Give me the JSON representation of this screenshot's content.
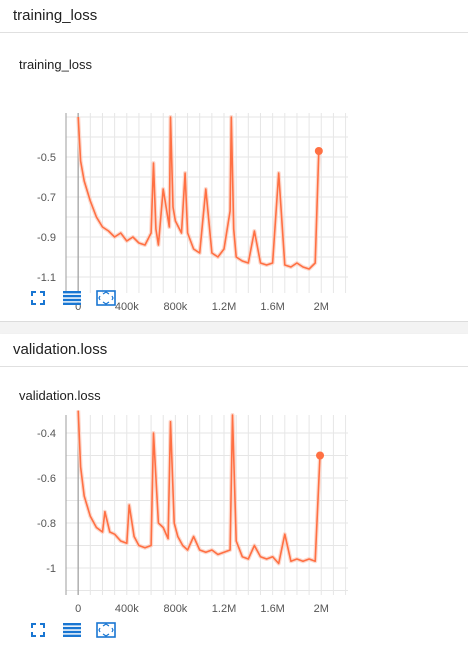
{
  "sections": [
    {
      "header": "training_loss",
      "card_title": "training_loss",
      "toolbar": [
        "expand-icon",
        "data-table-icon",
        "fit-domain-icon"
      ]
    },
    {
      "header": "validation.loss",
      "card_title": "validation.loss",
      "toolbar": [
        "expand-icon",
        "data-table-icon",
        "fit-domain-icon"
      ]
    }
  ],
  "colors": {
    "series": "#ff7043",
    "series_light": "#fbd0c2",
    "grid": "#e6e6e6",
    "axis": "#9e9e9e"
  },
  "chart_data": [
    {
      "type": "line",
      "title": "training_loss",
      "x_tick_labels": [
        "0",
        "400k",
        "800k",
        "1.2M",
        "1.6M",
        "2M"
      ],
      "x_ticks": [
        0,
        400000,
        800000,
        1200000,
        1600000,
        2000000
      ],
      "y_tick_labels": [
        "-0.5",
        "-0.7",
        "-0.9",
        "-1.1"
      ],
      "y_ticks": [
        -0.5,
        -0.7,
        -0.9,
        -1.1
      ],
      "xlim": [
        -100000,
        2220000
      ],
      "ylim": [
        -1.18,
        -0.28
      ],
      "grid": true,
      "series": [
        {
          "x": [
            0,
            20000,
            50000,
            100000,
            150000,
            200000,
            250000,
            300000,
            350000,
            400000,
            450000,
            500000,
            550000,
            600000,
            620000,
            640000,
            660000,
            700000,
            750000,
            760000,
            780000,
            800000,
            850000,
            880000,
            900000,
            950000,
            1000000,
            1050000,
            1100000,
            1150000,
            1200000,
            1250000,
            1260000,
            1280000,
            1300000,
            1350000,
            1400000,
            1450000,
            1500000,
            1550000,
            1600000,
            1650000,
            1700000,
            1750000,
            1800000,
            1850000,
            1900000,
            1950000,
            1980000
          ],
          "y": [
            -0.3,
            -0.52,
            -0.62,
            -0.72,
            -0.8,
            -0.85,
            -0.87,
            -0.9,
            -0.88,
            -0.92,
            -0.9,
            -0.93,
            -0.94,
            -0.88,
            -0.53,
            -0.86,
            -0.94,
            -0.66,
            -0.85,
            -0.3,
            -0.75,
            -0.82,
            -0.88,
            -0.58,
            -0.88,
            -0.96,
            -0.98,
            -0.66,
            -0.98,
            -1.0,
            -0.96,
            -0.77,
            -0.3,
            -0.86,
            -1.0,
            -1.02,
            -1.03,
            -0.87,
            -1.03,
            -1.04,
            -1.03,
            -0.58,
            -1.04,
            -1.05,
            -1.03,
            -1.05,
            -1.06,
            -1.03,
            -0.47
          ]
        }
      ]
    },
    {
      "type": "line",
      "title": "validation.loss",
      "x_tick_labels": [
        "0",
        "400k",
        "800k",
        "1.2M",
        "1.6M",
        "2M"
      ],
      "x_ticks": [
        0,
        400000,
        800000,
        1200000,
        1600000,
        2000000
      ],
      "y_tick_labels": [
        "-0.4",
        "-0.6",
        "-0.8",
        "-1"
      ],
      "y_ticks": [
        -0.4,
        -0.6,
        -0.8,
        -1.0
      ],
      "xlim": [
        -100000,
        2220000
      ],
      "ylim": [
        -1.12,
        -0.32
      ],
      "grid": true,
      "series": [
        {
          "x": [
            0,
            20000,
            50000,
            100000,
            150000,
            200000,
            220000,
            260000,
            300000,
            350000,
            400000,
            420000,
            460000,
            500000,
            550000,
            600000,
            620000,
            660000,
            700000,
            740000,
            760000,
            790000,
            820000,
            860000,
            900000,
            950000,
            1000000,
            1050000,
            1100000,
            1150000,
            1200000,
            1250000,
            1270000,
            1300000,
            1350000,
            1400000,
            1450000,
            1500000,
            1550000,
            1600000,
            1650000,
            1700000,
            1750000,
            1800000,
            1850000,
            1900000,
            1950000,
            1990000
          ],
          "y": [
            -0.3,
            -0.55,
            -0.68,
            -0.77,
            -0.82,
            -0.84,
            -0.75,
            -0.84,
            -0.85,
            -0.88,
            -0.89,
            -0.72,
            -0.86,
            -0.9,
            -0.91,
            -0.9,
            -0.4,
            -0.8,
            -0.82,
            -0.87,
            -0.35,
            -0.8,
            -0.86,
            -0.9,
            -0.92,
            -0.86,
            -0.92,
            -0.93,
            -0.92,
            -0.94,
            -0.93,
            -0.92,
            -0.32,
            -0.88,
            -0.95,
            -0.96,
            -0.9,
            -0.95,
            -0.96,
            -0.95,
            -0.98,
            -0.85,
            -0.97,
            -0.96,
            -0.97,
            -0.96,
            -0.97,
            -0.5
          ]
        }
      ]
    }
  ]
}
